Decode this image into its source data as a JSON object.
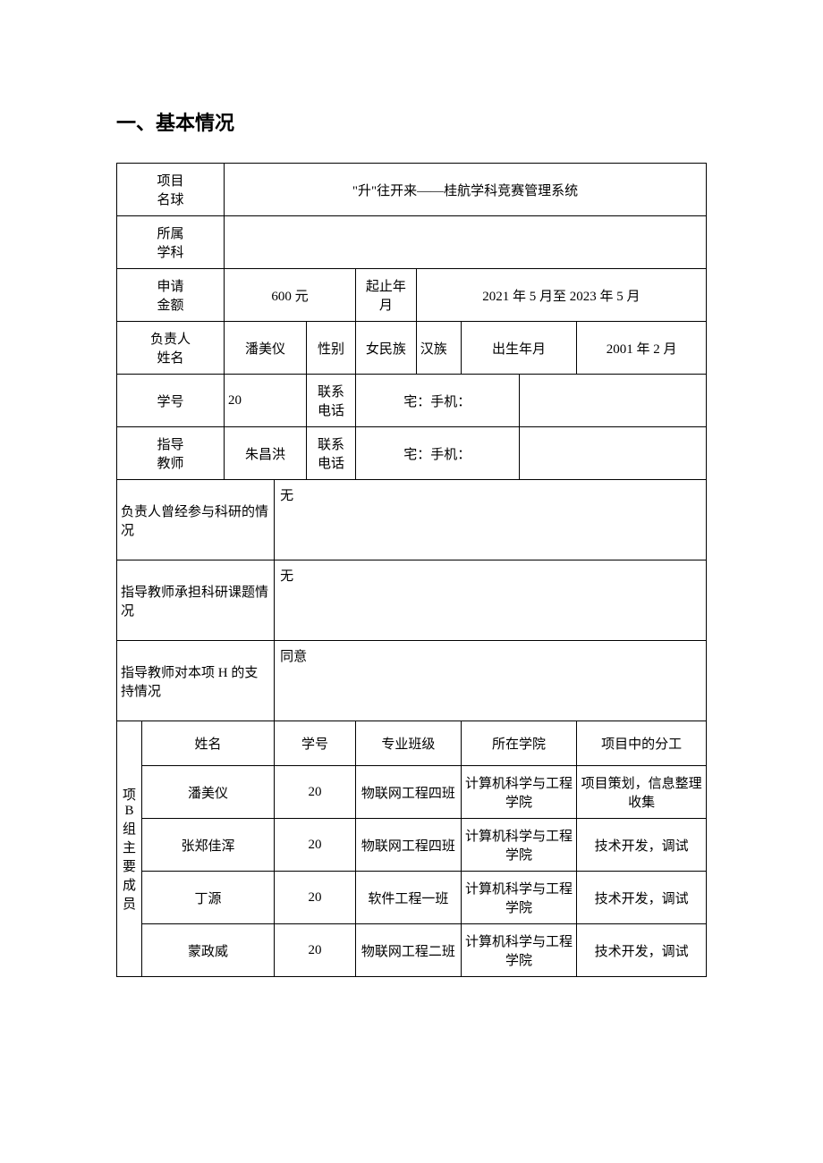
{
  "heading": "一、基本情况",
  "labels": {
    "project_name": "项目\n名球",
    "subject": "所属\n学科",
    "amount": "申请\n金额",
    "duration": "起止年月",
    "leader_name": "负责人\n姓名",
    "gender": "性别",
    "ethnicity": "女民族",
    "birth": "出生年月",
    "student_id": "学号",
    "phone": "联系\n电话",
    "home_mobile_1": "宅：手机：",
    "teacher": "指导\n教师",
    "home_mobile_2": "宅：手机：",
    "leader_research": "负责人曾经参与科研的情况",
    "teacher_research": "指导教师承担科研课题情况",
    "teacher_support": "指导教师对本项 H 的支持情况",
    "members_header": "项 B 组主要成员"
  },
  "values": {
    "project_name": "\"升\"往开来——桂航学科竞赛管理系统",
    "subject": "",
    "amount": "600 元",
    "duration": "2021 年 5 月至 2023 年 5 月",
    "leader_name": "潘美仪",
    "gender_val": "",
    "ethnicity": "汉族",
    "birth": "2001 年 2 月",
    "student_id": "20",
    "teacher": "朱昌洪",
    "leader_research": "无",
    "teacher_research": "无",
    "teacher_support": "同意"
  },
  "members": {
    "columns": {
      "name": "姓名",
      "id": "学号",
      "class": "专业班级",
      "college": "所在学院",
      "role": "项目中的分工"
    },
    "rows": [
      {
        "name": "潘美仪",
        "id": "20",
        "class": "物联网工程四班",
        "college": "计算机科学与工程学院",
        "role": "项目策划，信息整理收集"
      },
      {
        "name": "张郑佳浑",
        "id": "20",
        "class": "物联网工程四班",
        "college": "计算机科学与工程学院",
        "role": "技术开发，调试"
      },
      {
        "name": "丁源",
        "id": "20",
        "class": "软件工程一班",
        "college": "计算机科学与工程学院",
        "role": "技术开发，调试"
      },
      {
        "name": "蒙政威",
        "id": "20",
        "class": "物联网工程二班",
        "college": "计算机科学与工程学院",
        "role": "技术开发，调试"
      }
    ]
  }
}
